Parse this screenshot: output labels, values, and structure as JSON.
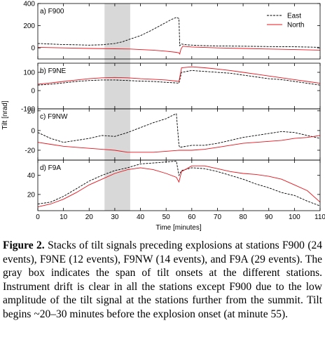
{
  "chart_data": {
    "type": "line",
    "xlabel": "Time [minutes]",
    "ylabel": "Tilt [nrad]",
    "xlim": [
      0,
      110
    ],
    "xticks": [
      0,
      10,
      20,
      30,
      40,
      50,
      60,
      70,
      80,
      90,
      100,
      110
    ],
    "shaded_span": [
      26,
      36
    ],
    "legend": {
      "position": "top-right",
      "entries": [
        {
          "name": "East",
          "color": "#000000",
          "style": "dashed"
        },
        {
          "name": "North",
          "color": "#e8141c",
          "style": "solid"
        }
      ]
    },
    "panels": [
      {
        "label": "a) F900",
        "ylim": [
          -100,
          400
        ],
        "yticks": [
          0,
          200,
          400
        ],
        "series": [
          {
            "name": "East",
            "x": [
              0,
              5,
              10,
              15,
              20,
              25,
              30,
              33,
              36,
              40,
              44,
              48,
              52,
              54,
              55,
              55.3,
              56,
              58,
              62,
              70,
              80,
              90,
              100,
              110
            ],
            "y": [
              40,
              35,
              30,
              28,
              25,
              28,
              40,
              55,
              80,
              110,
              155,
              205,
              255,
              275,
              265,
              20,
              35,
              28,
              22,
              18,
              15,
              12,
              10,
              5
            ]
          },
          {
            "name": "North",
            "x": [
              0,
              10,
              20,
              30,
              36,
              40,
              45,
              50,
              54,
              55,
              55.3,
              55.8,
              56.5,
              60,
              70,
              80,
              90,
              100,
              110
            ],
            "y": [
              5,
              0,
              -5,
              -8,
              -10,
              -15,
              -20,
              -30,
              -40,
              -45,
              -55,
              -10,
              15,
              8,
              0,
              -5,
              -10,
              -15,
              -20
            ]
          }
        ]
      },
      {
        "label": "b) F9NE",
        "ylim": [
          -100,
          150
        ],
        "yticks": [
          -100,
          0,
          100
        ],
        "series": [
          {
            "name": "East",
            "x": [
              0,
              5,
              10,
              15,
              20,
              25,
              30,
              35,
              40,
              45,
              50,
              54,
              55,
              56,
              60,
              65,
              70,
              75,
              80,
              85,
              90,
              95,
              100,
              105,
              110
            ],
            "y": [
              30,
              35,
              42,
              50,
              55,
              58,
              58,
              55,
              52,
              50,
              45,
              42,
              40,
              100,
              110,
              105,
              100,
              95,
              85,
              75,
              65,
              60,
              50,
              40,
              30
            ]
          },
          {
            "name": "North",
            "x": [
              0,
              5,
              10,
              15,
              20,
              25,
              30,
              35,
              40,
              45,
              50,
              54,
              55,
              56,
              60,
              65,
              70,
              75,
              80,
              85,
              90,
              95,
              100,
              105,
              110
            ],
            "y": [
              35,
              42,
              50,
              58,
              65,
              70,
              72,
              70,
              65,
              62,
              58,
              52,
              50,
              125,
              130,
              125,
              118,
              110,
              100,
              90,
              80,
              70,
              60,
              50,
              40
            ]
          }
        ]
      },
      {
        "label": "c) F9NW",
        "ylim": [
          -30,
          22
        ],
        "yticks": [
          -20,
          0,
          20
        ],
        "series": [
          {
            "name": "East",
            "x": [
              0,
              5,
              10,
              15,
              20,
              25,
              30,
              35,
              40,
              45,
              50,
              53,
              54,
              55,
              55.3,
              60,
              65,
              70,
              75,
              80,
              85,
              90,
              95,
              100,
              105,
              110
            ],
            "y": [
              -2,
              -8,
              -12,
              -10,
              -8,
              -5,
              -6,
              -2,
              3,
              8,
              12,
              16,
              17,
              -15,
              -17,
              -15,
              -15,
              -13,
              -10,
              -7,
              -5,
              -3,
              -1,
              -2,
              -5,
              -8
            ]
          },
          {
            "name": "North",
            "x": [
              0,
              5,
              10,
              15,
              20,
              25,
              30,
              35,
              40,
              45,
              50,
              55,
              60,
              65,
              70,
              75,
              80,
              85,
              90,
              95,
              100,
              105,
              110
            ],
            "y": [
              -12,
              -14,
              -16,
              -17,
              -18,
              -19,
              -20,
              -22,
              -22,
              -22,
              -21,
              -20,
              -20,
              -19,
              -17,
              -15,
              -13,
              -12,
              -11,
              -10,
              -8,
              -7,
              -5
            ]
          }
        ]
      },
      {
        "label": "d) F9A",
        "ylim": [
          3,
          56
        ],
        "yticks": [
          20,
          40
        ],
        "series": [
          {
            "name": "East",
            "x": [
              0,
              5,
              10,
              15,
              20,
              25,
              30,
              35,
              40,
              45,
              50,
              54,
              55,
              56,
              60,
              65,
              70,
              75,
              80,
              85,
              90,
              95,
              100,
              105,
              110
            ],
            "y": [
              10,
              12,
              18,
              26,
              34,
              40,
              45,
              48,
              52,
              53,
              54,
              55,
              40,
              45,
              48,
              47,
              44,
              40,
              36,
              31,
              27,
              22,
              19,
              13,
              8
            ]
          },
          {
            "name": "North",
            "x": [
              0,
              5,
              10,
              15,
              20,
              25,
              30,
              35,
              40,
              45,
              50,
              54,
              55,
              56,
              60,
              65,
              70,
              75,
              80,
              85,
              90,
              95,
              100,
              105,
              110
            ],
            "y": [
              7,
              10,
              15,
              22,
              30,
              36,
              42,
              46,
              48,
              46,
              42,
              38,
              33,
              44,
              50,
              50,
              47,
              44,
              42,
              41,
              39,
              36,
              30,
              24,
              12
            ]
          }
        ]
      }
    ]
  },
  "caption": {
    "title": "Figure 2.",
    "text": "Stacks of tilt signals preceding explosions at stations F900 (24 events), F9NE (12 events), F9NW (14 events), and F9A (29 events). The gray box indicates the span of tilt onsets at the different stations. Instrument drift is clear in all the stations except F900 due to the low amplitude of the tilt signal at the stations further from the summit. Tilt begins ~20–30 minutes before the explosion onset (at minute 55)."
  }
}
